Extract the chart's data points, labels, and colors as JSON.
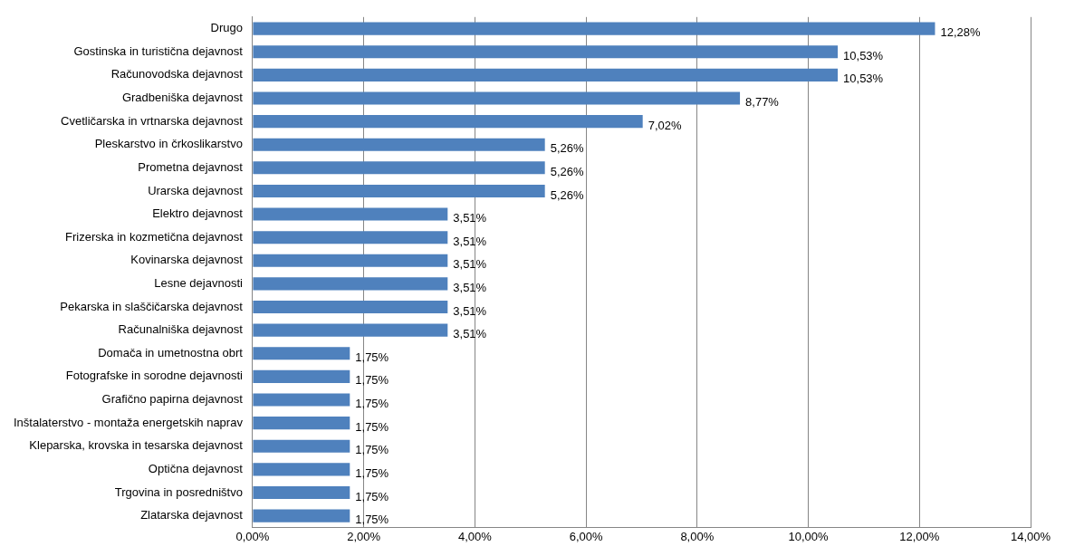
{
  "chart_data": {
    "type": "bar",
    "orientation": "horizontal",
    "categories": [
      "Drugo",
      "Gostinska in turistična dejavnost",
      "Računovodska dejavnost",
      "Gradbeniška dejavnost",
      "Cvetličarska in vrtnarska dejavnost",
      "Pleskarstvo in črkoslikarstvo",
      "Prometna dejavnost",
      "Urarska dejavnost",
      "Elektro dejavnost",
      "Frizerska in kozmetična dejavnost",
      "Kovinarska dejavnost",
      "Lesne dejavnosti",
      "Pekarska in slaščičarska dejavnost",
      "Računalniška dejavnost",
      "Domača in umetnostna obrt",
      "Fotografske in sorodne dejavnosti",
      "Grafično papirna dejavnost",
      "Inštalaterstvo - montaža energetskih naprav",
      "Kleparska, krovska in tesarska dejavnost",
      "Optična dejavnost",
      "Trgovina in posredništvo",
      "Zlatarska dejavnost"
    ],
    "values": [
      12.28,
      10.53,
      10.53,
      8.77,
      7.02,
      5.26,
      5.26,
      5.26,
      3.51,
      3.51,
      3.51,
      3.51,
      3.51,
      3.51,
      1.75,
      1.75,
      1.75,
      1.75,
      1.75,
      1.75,
      1.75,
      1.75
    ],
    "value_labels": [
      "12,28%",
      "10,53%",
      "10,53%",
      "8,77%",
      "7,02%",
      "5,26%",
      "5,26%",
      "5,26%",
      "3,51%",
      "3,51%",
      "3,51%",
      "3,51%",
      "3,51%",
      "3,51%",
      "1,75%",
      "1,75%",
      "1,75%",
      "1,75%",
      "1,75%",
      "1,75%",
      "1,75%",
      "1,75%"
    ],
    "color": "#4f81bd",
    "xlim": [
      0,
      14
    ],
    "xticks": [
      {
        "value": 0,
        "label": "0,00%"
      },
      {
        "value": 2,
        "label": "2,00%"
      },
      {
        "value": 4,
        "label": "4,00%"
      },
      {
        "value": 6,
        "label": "6,00%"
      },
      {
        "value": 8,
        "label": "8,00%"
      },
      {
        "value": 10,
        "label": "10,00%"
      },
      {
        "value": 12,
        "label": "12,00%"
      },
      {
        "value": 14,
        "label": "14,00%"
      }
    ],
    "grid": "x",
    "legend": false
  }
}
